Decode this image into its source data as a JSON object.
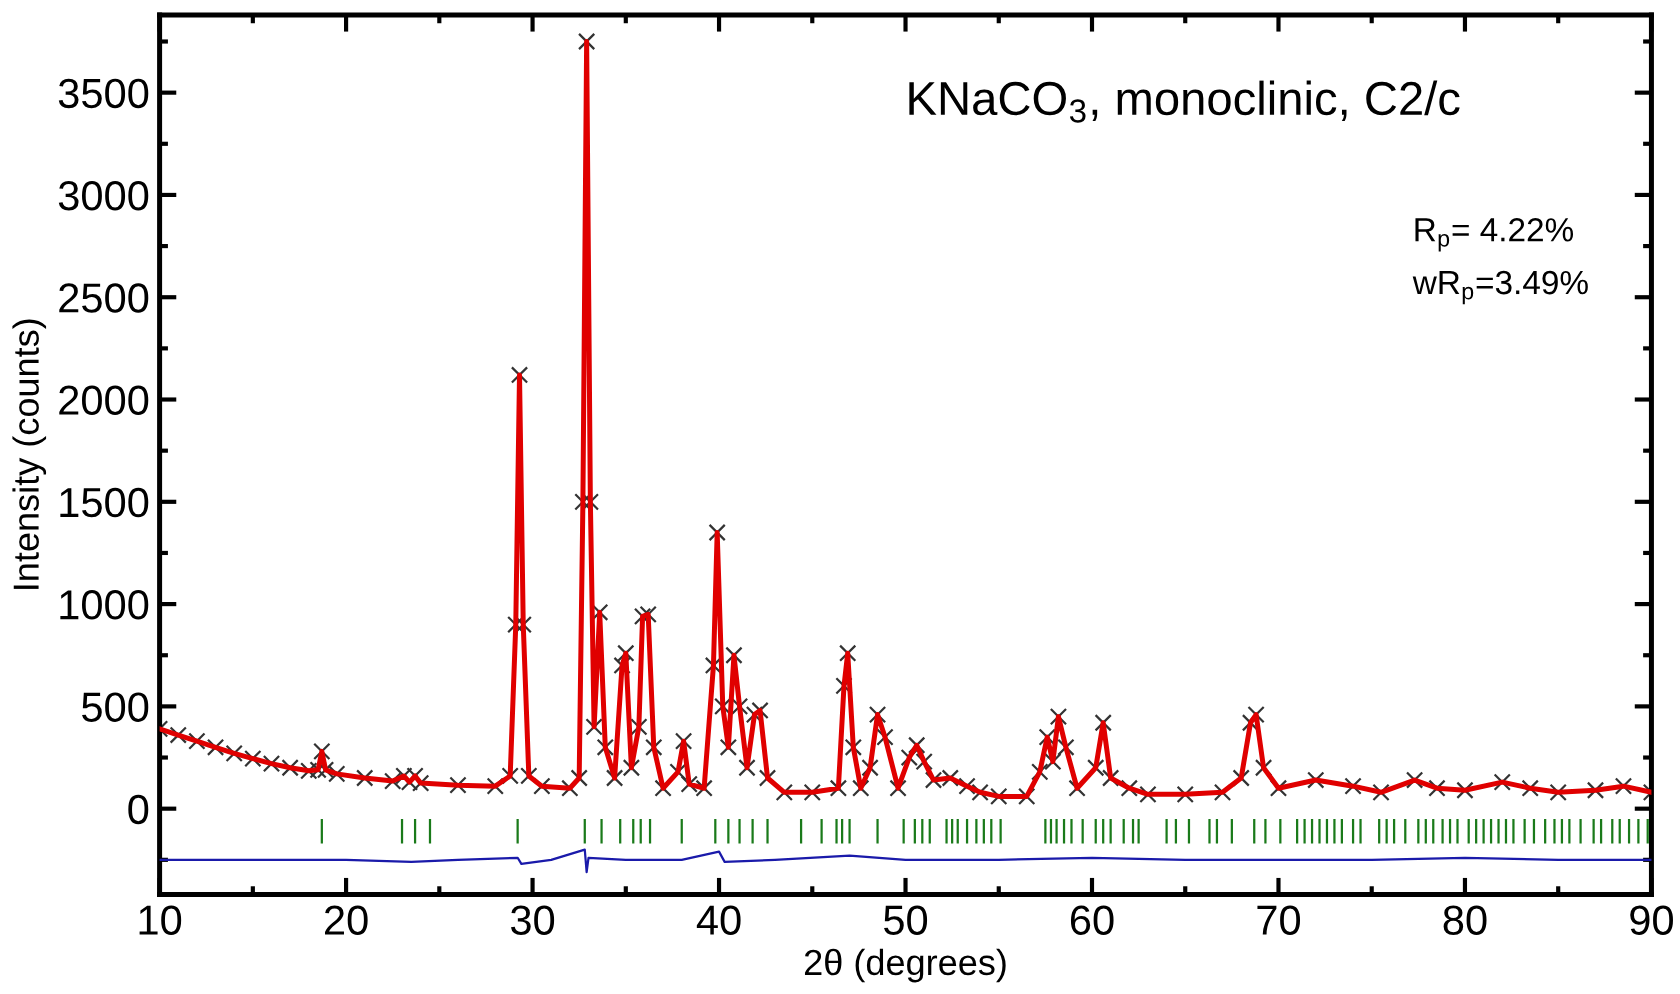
{
  "chart_data": {
    "type": "line",
    "xlabel": "2θ (degrees)",
    "ylabel": "Intensity (counts)",
    "xlim": [
      10,
      90
    ],
    "ylim": [
      -420,
      3880
    ],
    "xticks": [
      10,
      20,
      30,
      40,
      50,
      60,
      70,
      80,
      90
    ],
    "yticks": [
      0,
      500,
      1000,
      1500,
      2000,
      2500,
      3000,
      3500
    ],
    "grid": false,
    "legend": false,
    "annotations": [
      "KNaCO$_{3}$, monoclinic, C2/c",
      "R$_{p}$= 4.22%",
      "wR$_{p}$=3.49%"
    ],
    "series": [
      {
        "type": "scatter",
        "marker": "cross",
        "color": "#333333",
        "x": [
          10,
          11,
          12,
          13,
          14,
          15,
          16,
          17,
          18,
          18.5,
          18.7,
          18.9,
          19.5,
          21,
          22.5,
          23.1,
          23.4,
          23.7,
          24,
          26,
          28,
          28.8,
          29.1,
          29.3,
          29.5,
          29.8,
          30.5,
          32,
          32.5,
          32.7,
          32.9,
          33.1,
          33.3,
          33.6,
          33.9,
          34.4,
          34.8,
          35.0,
          35.3,
          35.7,
          35.9,
          36.2,
          36.5,
          37.0,
          37.8,
          38.1,
          38.4,
          39.2,
          39.7,
          39.9,
          40.2,
          40.5,
          40.8,
          41.1,
          41.5,
          41.9,
          42.2,
          42.6,
          43.5,
          45,
          46.4,
          46.7,
          46.9,
          47.2,
          47.6,
          48.1,
          48.5,
          48.9,
          49.6,
          50.2,
          50.6,
          51.0,
          51.5,
          52.4,
          53.3,
          54,
          55,
          56.5,
          57.2,
          57.6,
          57.9,
          58.2,
          58.6,
          59.2,
          60.2,
          60.6,
          61.0,
          62,
          63,
          65,
          67,
          68.0,
          68.5,
          68.8,
          69.2,
          70,
          72,
          74,
          75.5,
          77.3,
          78.5,
          80,
          82,
          83.5,
          85,
          87,
          88.5,
          90
        ],
        "values": [
          390,
          360,
          330,
          300,
          270,
          245,
          220,
          200,
          185,
          190,
          280,
          190,
          170,
          150,
          135,
          160,
          130,
          160,
          125,
          115,
          110,
          160,
          900,
          2120,
          900,
          160,
          110,
          100,
          150,
          1500,
          3750,
          1500,
          400,
          960,
          300,
          150,
          700,
          760,
          200,
          400,
          940,
          950,
          300,
          100,
          180,
          330,
          120,
          100,
          700,
          1350,
          500,
          300,
          750,
          500,
          200,
          460,
          480,
          150,
          80,
          80,
          100,
          600,
          760,
          300,
          100,
          200,
          460,
          350,
          100,
          250,
          310,
          230,
          140,
          150,
          110,
          80,
          60,
          60,
          180,
          350,
          230,
          450,
          300,
          100,
          200,
          420,
          150,
          100,
          70,
          70,
          80,
          150,
          420,
          460,
          200,
          100,
          140,
          110,
          80,
          140,
          100,
          90,
          130,
          100,
          80,
          90,
          110,
          80
        ]
      },
      {
        "color": "#e00000",
        "x": [
          10,
          11,
          12,
          13,
          14,
          15,
          16,
          17,
          18,
          18.5,
          18.7,
          18.9,
          19.5,
          21,
          22.5,
          23.1,
          23.4,
          23.7,
          24,
          26,
          28,
          28.8,
          29.1,
          29.3,
          29.5,
          29.8,
          30.5,
          32,
          32.5,
          32.7,
          32.9,
          33.1,
          33.3,
          33.6,
          33.9,
          34.4,
          34.8,
          35.0,
          35.3,
          35.7,
          35.9,
          36.2,
          36.5,
          37.0,
          37.8,
          38.1,
          38.4,
          39.2,
          39.7,
          39.9,
          40.2,
          40.5,
          40.8,
          41.1,
          41.5,
          41.9,
          42.2,
          42.6,
          43.5,
          45,
          46.4,
          46.7,
          46.9,
          47.2,
          47.6,
          48.1,
          48.5,
          48.9,
          49.6,
          50.2,
          50.6,
          51.0,
          51.5,
          52.4,
          53.3,
          54,
          55,
          56.5,
          57.2,
          57.6,
          57.9,
          58.2,
          58.6,
          59.2,
          60.2,
          60.6,
          61.0,
          62,
          63,
          65,
          67,
          68.0,
          68.5,
          68.8,
          69.2,
          70,
          72,
          74,
          75.5,
          77.3,
          78.5,
          80,
          82,
          83.5,
          85,
          87,
          88.5,
          90
        ],
        "values": [
          390,
          360,
          330,
          300,
          270,
          245,
          220,
          200,
          185,
          190,
          280,
          190,
          170,
          150,
          135,
          160,
          130,
          160,
          125,
          115,
          110,
          160,
          900,
          2120,
          900,
          160,
          110,
          100,
          150,
          1500,
          3750,
          1500,
          400,
          960,
          300,
          150,
          700,
          760,
          200,
          400,
          940,
          950,
          300,
          100,
          180,
          330,
          120,
          100,
          700,
          1350,
          500,
          300,
          750,
          500,
          200,
          460,
          480,
          150,
          80,
          80,
          100,
          600,
          760,
          300,
          100,
          200,
          460,
          350,
          100,
          250,
          310,
          230,
          140,
          150,
          110,
          80,
          60,
          60,
          180,
          350,
          230,
          450,
          300,
          100,
          200,
          420,
          150,
          100,
          70,
          70,
          80,
          150,
          420,
          460,
          200,
          100,
          140,
          110,
          80,
          140,
          100,
          90,
          130,
          100,
          80,
          90,
          110,
          80
        ]
      },
      {
        "type": "bar",
        "color": "#1a7a1a",
        "x": [
          18.7,
          23.0,
          23.7,
          24.5,
          29.2,
          32.8,
          33.7,
          34.7,
          35.4,
          35.8,
          36.3,
          38.0,
          39.8,
          40.5,
          41.1,
          41.8,
          42.6,
          44.4,
          45.5,
          46.3,
          46.6,
          47.0,
          48.5,
          49.9,
          50.5,
          50.9,
          51.3,
          52.2,
          52.5,
          52.8,
          53.3,
          53.8,
          54.2,
          54.6,
          55.1,
          57.5,
          57.8,
          58.1,
          58.5,
          58.9,
          59.5,
          60.2,
          60.6,
          61.0,
          61.7,
          62.2,
          62.5,
          64.0,
          64.5,
          65.2,
          66.3,
          66.7,
          67.5,
          68.7,
          69.3,
          70.1,
          71.0,
          71.4,
          71.8,
          72.2,
          72.6,
          73.0,
          73.4,
          74.0,
          74.4,
          75.4,
          75.8,
          76.2,
          76.8,
          77.5,
          77.9,
          78.3,
          78.8,
          79.2,
          79.6,
          80.2,
          80.6,
          81.0,
          81.4,
          81.8,
          82.2,
          82.6,
          83.2,
          83.7,
          84.3,
          84.8,
          85.2,
          85.6,
          86.2,
          86.9,
          87.3,
          87.9,
          88.3,
          88.8,
          89.3,
          89.8
        ],
        "base": [
          -50,
          -50,
          -50,
          -50,
          -50,
          -50,
          -50,
          -50,
          -50,
          -50,
          -50,
          -50,
          -50,
          -50,
          -50,
          -50,
          -50,
          -50,
          -50,
          -50,
          -50,
          -50,
          -50,
          -50,
          -50,
          -50,
          -50,
          -50,
          -50,
          -50,
          -50,
          -50,
          -50,
          -50,
          -50,
          -50,
          -50,
          -50,
          -50,
          -50,
          -50,
          -50,
          -50,
          -50,
          -50,
          -50,
          -50,
          -50,
          -50,
          -50,
          -50,
          -50,
          -50,
          -50,
          -50,
          -50,
          -50,
          -50,
          -50,
          -50,
          -50,
          -50,
          -50,
          -50,
          -50,
          -50,
          -50,
          -50,
          -50,
          -50,
          -50,
          -50,
          -50,
          -50,
          -50,
          -50,
          -50,
          -50,
          -50,
          -50,
          -50,
          -50,
          -50,
          -50,
          -50,
          -50,
          -50,
          -50,
          -50,
          -50,
          -50,
          -50,
          -50,
          -50,
          -50,
          -50
        ],
        "values": [
          -120,
          -120,
          -120,
          -120,
          -120,
          -120,
          -120,
          -120,
          -120,
          -120,
          -120,
          -120,
          -120,
          -120,
          -120,
          -120,
          -120,
          -120,
          -120,
          -120,
          -120,
          -120,
          -120,
          -120,
          -120,
          -120,
          -120,
          -120,
          -120,
          -120,
          -120,
          -120,
          -120,
          -120,
          -120,
          -120,
          -120,
          -120,
          -120,
          -120,
          -120,
          -120,
          -120,
          -120,
          -120,
          -120,
          -120,
          -120,
          -120,
          -120,
          -120,
          -120,
          -120,
          -120,
          -120,
          -120,
          -120,
          -120,
          -120,
          -120,
          -120,
          -120,
          -120,
          -120,
          -120,
          -120,
          -120,
          -120,
          -120,
          -120,
          -120,
          -120,
          -120,
          -120,
          -120,
          -120,
          -120,
          -120,
          -120,
          -120,
          -120,
          -120,
          -120,
          -120,
          -120,
          -120,
          -120,
          -120,
          -120,
          -120,
          -120,
          -120,
          -120,
          -120,
          -120,
          -120
        ]
      },
      {
        "type": "line",
        "color": "#1a1aaa",
        "x": [
          10,
          15,
          20,
          23.5,
          26,
          29.2,
          29.4,
          31,
          32.8,
          32.9,
          33.0,
          35,
          38,
          40,
          40.3,
          43,
          47,
          50,
          55,
          60,
          65,
          70,
          75,
          80,
          85,
          90
        ],
        "values": [
          -250,
          -250,
          -250,
          -260,
          -250,
          -240,
          -270,
          -250,
          -200,
          -310,
          -240,
          -250,
          -250,
          -210,
          -260,
          -250,
          -230,
          -250,
          -250,
          -240,
          -250,
          -250,
          -250,
          -240,
          -250,
          -250
        ]
      }
    ]
  }
}
